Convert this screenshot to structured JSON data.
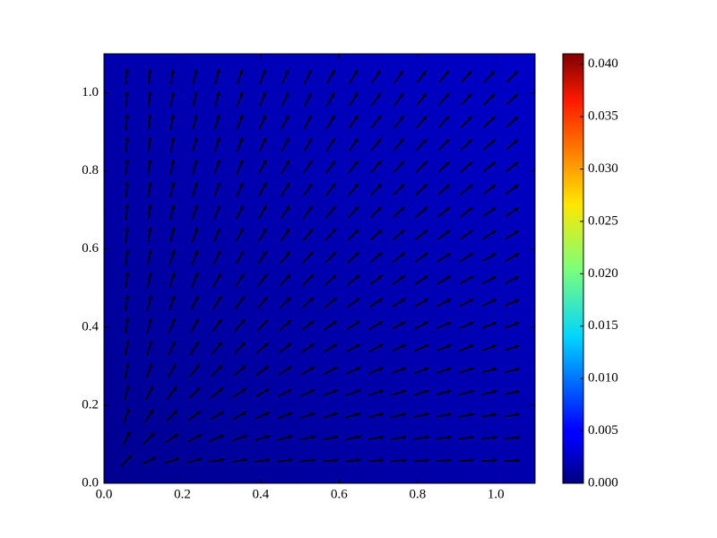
{
  "chart_data": {
    "type": "quiver",
    "arrow_color": "#000000",
    "xlim": [
      0,
      1.1
    ],
    "ylim": [
      0,
      1.1
    ],
    "xticks": [
      {
        "value": 0,
        "label": "0.0"
      },
      {
        "value": 0.2,
        "label": "0.2"
      },
      {
        "value": 0.4,
        "label": "0.4"
      },
      {
        "value": 0.6,
        "label": "0.6"
      },
      {
        "value": 0.8,
        "label": "0.8"
      },
      {
        "value": 1,
        "label": "1.0"
      }
    ],
    "yticks": [
      {
        "value": 0,
        "label": "0.0"
      },
      {
        "value": 0.2,
        "label": "0.2"
      },
      {
        "value": 0.4,
        "label": "0.4"
      },
      {
        "value": 0.6,
        "label": "0.6"
      },
      {
        "value": 0.8,
        "label": "0.8"
      },
      {
        "value": 1,
        "label": "1.0"
      }
    ],
    "x": [
      0.058,
      0.116,
      0.174,
      0.232,
      0.289,
      0.347,
      0.405,
      0.463,
      0.521,
      0.579,
      0.637,
      0.695,
      0.753,
      0.811,
      0.868,
      0.926,
      0.984,
      1.042
    ],
    "y": [
      0.058,
      0.116,
      0.174,
      0.232,
      0.289,
      0.347,
      0.405,
      0.463,
      0.521,
      0.579,
      0.637,
      0.695,
      0.753,
      0.811,
      0.868,
      0.926,
      0.984,
      1.042
    ],
    "angles": [
      [
        45,
        27,
        18,
        14,
        11,
        9,
        8,
        7,
        6,
        6,
        5,
        5,
        4,
        4,
        4,
        4,
        3,
        3
      ],
      [
        63,
        45,
        34,
        27,
        22,
        18,
        16,
        14,
        13,
        11,
        10,
        9,
        9,
        8,
        8,
        7,
        7,
        6
      ],
      [
        72,
        56,
        45,
        37,
        31,
        27,
        23,
        21,
        18,
        17,
        15,
        14,
        13,
        12,
        11,
        11,
        10,
        9
      ],
      [
        76,
        63,
        53,
        45,
        39,
        34,
        30,
        27,
        24,
        22,
        20,
        18,
        17,
        16,
        15,
        14,
        13,
        13
      ],
      [
        79,
        68,
        59,
        51,
        45,
        40,
        36,
        32,
        29,
        27,
        24,
        23,
        21,
        20,
        18,
        17,
        16,
        16
      ],
      [
        81,
        72,
        63,
        56,
        50,
        45,
        41,
        37,
        34,
        31,
        29,
        27,
        25,
        23,
        22,
        21,
        19,
        18
      ],
      [
        82,
        74,
        67,
        60,
        54,
        49,
        45,
        41,
        38,
        35,
        32,
        30,
        28,
        27,
        25,
        24,
        22,
        21
      ],
      [
        83,
        76,
        69,
        63,
        58,
        53,
        49,
        45,
        42,
        39,
        36,
        34,
        32,
        30,
        28,
        27,
        25,
        24
      ],
      [
        84,
        77,
        72,
        66,
        61,
        56,
        52,
        48,
        45,
        42,
        39,
        37,
        35,
        33,
        31,
        29,
        28,
        27
      ],
      [
        84,
        79,
        73,
        68,
        63,
        59,
        55,
        51,
        48,
        45,
        42,
        40,
        38,
        36,
        34,
        32,
        30,
        29
      ],
      [
        85,
        80,
        75,
        70,
        66,
        61,
        58,
        54,
        51,
        48,
        45,
        43,
        40,
        38,
        36,
        35,
        33,
        31
      ],
      [
        85,
        81,
        76,
        72,
        67,
        63,
        60,
        56,
        53,
        50,
        47,
        45,
        43,
        41,
        39,
        37,
        35,
        34
      ],
      [
        86,
        81,
        77,
        73,
        69,
        65,
        62,
        58,
        55,
        52,
        50,
        47,
        45,
        43,
        41,
        39,
        37,
        36
      ],
      [
        86,
        82,
        78,
        74,
        70,
        67,
        63,
        60,
        57,
        54,
        52,
        49,
        47,
        45,
        43,
        41,
        39,
        38
      ],
      [
        86,
        82,
        79,
        75,
        72,
        68,
        65,
        62,
        59,
        56,
        54,
        51,
        49,
        47,
        45,
        43,
        41,
        40
      ],
      [
        86,
        83,
        79,
        76,
        73,
        69,
        66,
        63,
        61,
        58,
        56,
        53,
        51,
        49,
        47,
        45,
        43,
        42
      ],
      [
        87,
        83,
        80,
        77,
        74,
        71,
        68,
        65,
        62,
        60,
        57,
        55,
        53,
        51,
        49,
        47,
        45,
        43
      ],
      [
        87,
        84,
        81,
        77,
        75,
        72,
        69,
        66,
        63,
        61,
        59,
        56,
        54,
        52,
        50,
        48,
        47,
        45
      ]
    ],
    "colorbar": {
      "lim": [
        0,
        0.041
      ],
      "ticks": [
        {
          "value": 0,
          "label": "0.000"
        },
        {
          "value": 0.005,
          "label": "0.005"
        },
        {
          "value": 0.01,
          "label": "0.010"
        },
        {
          "value": 0.015,
          "label": "0.015"
        },
        {
          "value": 0.02,
          "label": "0.020"
        },
        {
          "value": 0.025,
          "label": "0.025"
        },
        {
          "value": 0.03,
          "label": "0.030"
        },
        {
          "value": 0.035,
          "label": "0.035"
        },
        {
          "value": 0.04,
          "label": "0.040"
        }
      ]
    }
  }
}
